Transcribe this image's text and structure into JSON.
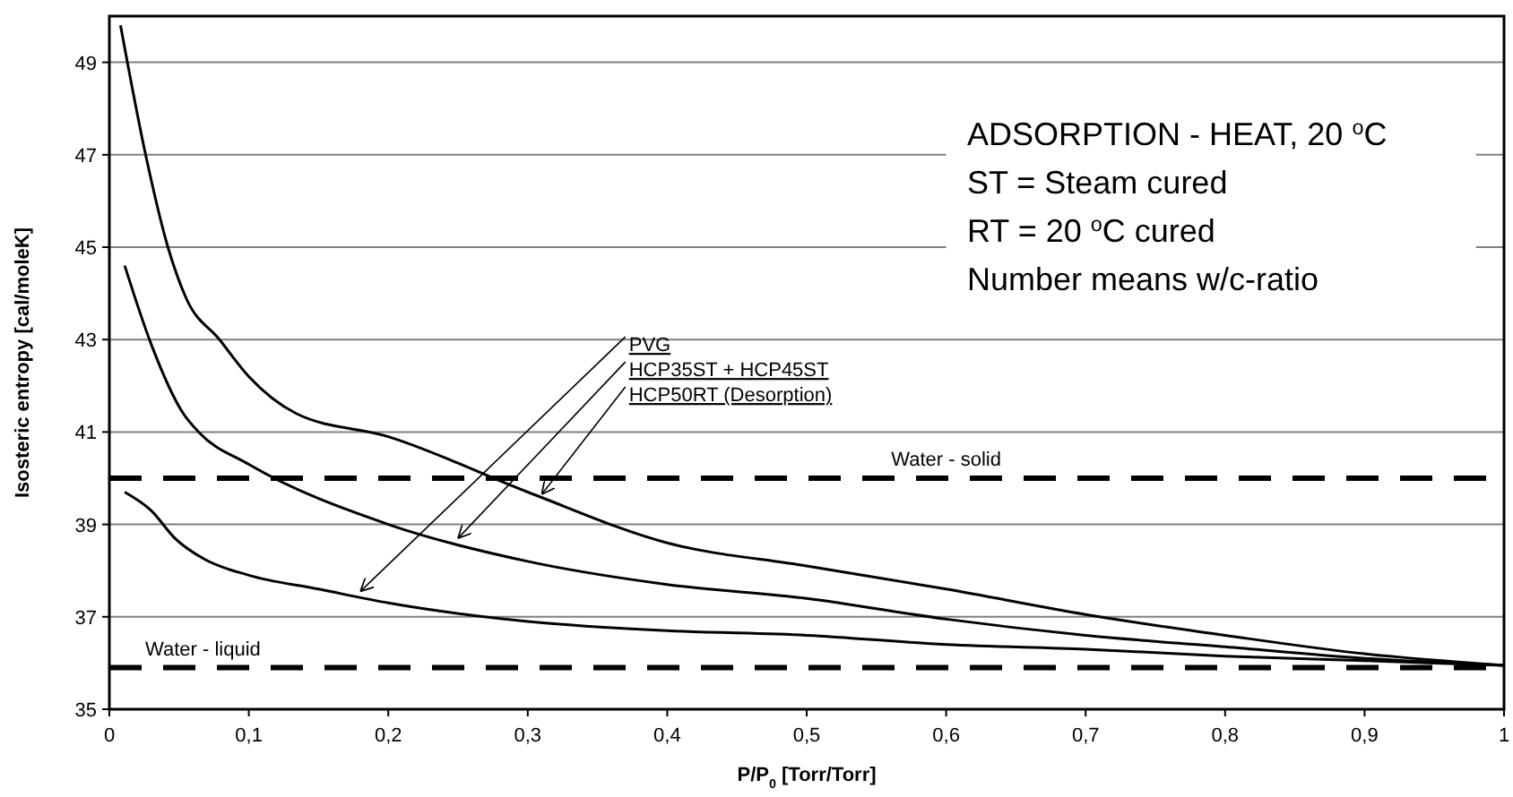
{
  "chart_data": {
    "type": "line",
    "xlabel": "P/P$_{0}$ [Torr/Torr]",
    "ylabel": "Isosteric entropy [cal/moleK]",
    "xlim": [
      0,
      1
    ],
    "ylim": [
      35,
      50
    ],
    "xticks": [
      0,
      {
        "value": 0.1,
        "label": "0,1"
      },
      {
        "value": 0.2,
        "label": "0,2"
      },
      {
        "value": 0.3,
        "label": "0,3"
      },
      {
        "value": 0.4,
        "label": "0,4"
      },
      {
        "value": 0.5,
        "label": "0,5"
      },
      {
        "value": 0.6,
        "label": "0,6"
      },
      {
        "value": 0.7,
        "label": "0,7"
      },
      {
        "value": 0.8,
        "label": "0,8"
      },
      {
        "value": 0.9,
        "label": "0,9"
      },
      1
    ],
    "yticks": [
      35,
      37,
      39,
      41,
      43,
      45,
      47,
      49
    ],
    "grid": "y",
    "marker": "none",
    "line_style": "solid",
    "series": [
      {
        "color": "#000000",
        "x": [
          0.011,
          0.03,
          0.047,
          0.068,
          0.1,
          0.15,
          0.2,
          0.3,
          0.4,
          0.5,
          0.6,
          0.7,
          0.8,
          0.9,
          1
        ],
        "values": [
          39.7,
          39.3,
          38.7,
          38.25,
          37.9,
          37.6,
          37.3,
          36.9,
          36.7,
          36.6,
          36.4,
          36.3,
          36.15,
          36.05,
          35.95
        ]
      },
      {
        "color": "#000000",
        "x": [
          0.011,
          0.03,
          0.053,
          0.064,
          0.1,
          0.2,
          0.3,
          0.4,
          0.5,
          0.6,
          0.7,
          0.8,
          0.9,
          1
        ],
        "values": [
          44.6,
          42.9,
          41.4,
          41,
          40.3,
          39,
          38.2,
          37.7,
          37.4,
          36.95,
          36.6,
          36.35,
          36.1,
          35.95
        ]
      },
      {
        "color": "#000000",
        "x": [
          0.008,
          0.026,
          0.042,
          0.055,
          0.079,
          0.1,
          0.134,
          0.2,
          0.3,
          0.4,
          0.5,
          0.6,
          0.7,
          0.8,
          0.9,
          1
        ],
        "values": [
          49.8,
          47,
          45,
          43.9,
          43,
          42.2,
          41.4,
          40.9,
          39.7,
          38.6,
          38.1,
          37.6,
          37.05,
          36.6,
          36.2,
          35.95
        ]
      }
    ],
    "ref_lines": [
      {
        "axis": "y",
        "value": 40,
        "label": "Water - solid",
        "color": "#000000",
        "line_style": "dashed"
      },
      {
        "axis": "y",
        "value": 35.9,
        "label": "Water - liquid",
        "color": "#000000",
        "line_style": "dashed"
      }
    ],
    "annotations": [
      "ADSORPTION - HEAT, 20 $^{o}$C",
      "ST = Steam cured",
      "RT = 20 $^{o}$C cured",
      "Number means w/c-ratio",
      {
        "text": "PVG",
        "x": 0.18,
        "y": 37.55
      },
      {
        "text": "HCP35ST + HCP45ST",
        "x": 0.25,
        "y": 38.7
      },
      {
        "text": "HCP50RT (Desorption)",
        "x": 0.31,
        "y": 39.65
      }
    ]
  }
}
